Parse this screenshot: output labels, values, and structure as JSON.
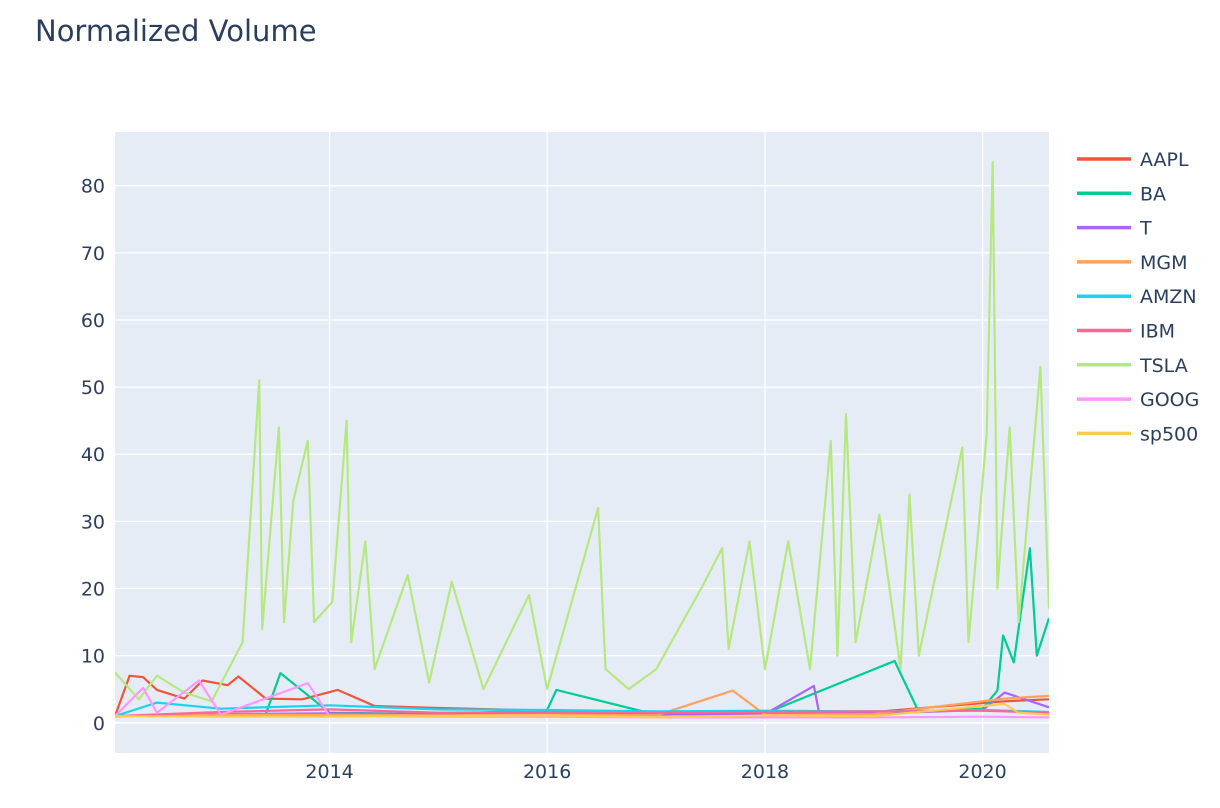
{
  "chart_data": {
    "type": "line",
    "title": "Normalized Volume",
    "xlabel": "",
    "ylabel": "",
    "x_range": [
      "2012-01-12",
      "2020-08-11"
    ],
    "ylim": [
      -4.5,
      88
    ],
    "x_ticks": [
      "2014",
      "2016",
      "2018",
      "2020"
    ],
    "y_ticks": [
      0,
      10,
      20,
      30,
      40,
      50,
      60,
      70,
      80
    ],
    "grid": true,
    "legend_position": "right",
    "plot_background": "#e5ecf6",
    "series": [
      {
        "name": "AAPL",
        "color": "#EF553B",
        "points": [
          [
            "2012-01-12",
            1.0
          ],
          [
            "2012-03-01",
            7.0
          ],
          [
            "2012-04-15",
            6.8
          ],
          [
            "2012-06-01",
            4.9
          ],
          [
            "2012-09-01",
            3.6
          ],
          [
            "2012-11-01",
            6.3
          ],
          [
            "2013-01-24",
            5.6
          ],
          [
            "2013-03-01",
            6.9
          ],
          [
            "2013-06-01",
            3.6
          ],
          [
            "2013-10-01",
            3.5
          ],
          [
            "2014-01-28",
            4.9
          ],
          [
            "2014-06-01",
            2.5
          ],
          [
            "2015-01-01",
            2.2
          ],
          [
            "2016-01-01",
            1.8
          ],
          [
            "2017-01-01",
            1.3
          ],
          [
            "2018-01-01",
            1.4
          ],
          [
            "2019-01-01",
            1.6
          ],
          [
            "2020-03-15",
            3.2
          ],
          [
            "2020-08-11",
            3.5
          ]
        ]
      },
      {
        "name": "BA",
        "color": "#00CC96",
        "points": [
          [
            "2012-01-12",
            1.0
          ],
          [
            "2013-06-01",
            1.3
          ],
          [
            "2013-07-20",
            7.4
          ],
          [
            "2014-01-01",
            1.5
          ],
          [
            "2015-01-01",
            1.3
          ],
          [
            "2016-01-01",
            1.9
          ],
          [
            "2016-02-01",
            4.9
          ],
          [
            "2017-01-01",
            1.2
          ],
          [
            "2018-01-01",
            1.4
          ],
          [
            "2019-03-12",
            9.2
          ],
          [
            "2019-06-01",
            1.6
          ],
          [
            "2020-01-01",
            2.1
          ],
          [
            "2020-02-20",
            4.8
          ],
          [
            "2020-03-10",
            13.0
          ],
          [
            "2020-04-15",
            9.0
          ],
          [
            "2020-06-08",
            26.0
          ],
          [
            "2020-07-01",
            10.0
          ],
          [
            "2020-08-11",
            15.6
          ]
        ]
      },
      {
        "name": "T",
        "color": "#AB63FA",
        "points": [
          [
            "2012-01-12",
            1.0
          ],
          [
            "2013-01-01",
            1.3
          ],
          [
            "2014-01-01",
            1.4
          ],
          [
            "2015-01-01",
            1.3
          ],
          [
            "2016-01-01",
            1.4
          ],
          [
            "2017-01-01",
            1.3
          ],
          [
            "2018-01-01",
            1.3
          ],
          [
            "2018-06-14",
            5.5
          ],
          [
            "2018-07-01",
            1.6
          ],
          [
            "2019-01-01",
            1.4
          ],
          [
            "2019-06-01",
            1.6
          ],
          [
            "2020-01-01",
            1.9
          ],
          [
            "2020-03-15",
            4.5
          ],
          [
            "2020-08-11",
            2.3
          ]
        ]
      },
      {
        "name": "MGM",
        "color": "#FFA15A",
        "points": [
          [
            "2012-01-12",
            1.0
          ],
          [
            "2013-01-01",
            1.2
          ],
          [
            "2014-01-01",
            1.2
          ],
          [
            "2015-01-01",
            1.1
          ],
          [
            "2016-01-01",
            1.2
          ],
          [
            "2017-01-01",
            1.1
          ],
          [
            "2017-09-15",
            4.8
          ],
          [
            "2018-01-01",
            1.2
          ],
          [
            "2019-01-01",
            1.3
          ],
          [
            "2020-03-15",
            3.6
          ],
          [
            "2020-08-11",
            4.0
          ]
        ]
      },
      {
        "name": "AMZN",
        "color": "#19D3F3",
        "points": [
          [
            "2012-01-12",
            1.0
          ],
          [
            "2012-06-01",
            3.0
          ],
          [
            "2013-01-01",
            2.1
          ],
          [
            "2014-01-01",
            2.6
          ],
          [
            "2015-01-01",
            2.0
          ],
          [
            "2016-01-01",
            1.9
          ],
          [
            "2017-01-01",
            1.7
          ],
          [
            "2018-01-01",
            1.8
          ],
          [
            "2019-01-01",
            1.7
          ],
          [
            "2020-01-01",
            1.9
          ],
          [
            "2020-08-11",
            1.6
          ]
        ]
      },
      {
        "name": "IBM",
        "color": "#FF6692",
        "points": [
          [
            "2012-01-12",
            1.0
          ],
          [
            "2013-01-01",
            1.6
          ],
          [
            "2014-01-01",
            2.0
          ],
          [
            "2015-01-01",
            1.5
          ],
          [
            "2016-01-01",
            1.6
          ],
          [
            "2017-01-01",
            1.5
          ],
          [
            "2018-01-01",
            1.6
          ],
          [
            "2019-01-01",
            1.7
          ],
          [
            "2020-01-01",
            1.8
          ],
          [
            "2020-08-11",
            1.5
          ]
        ]
      },
      {
        "name": "TSLA",
        "color": "#B6E880",
        "points": [
          [
            "2012-01-12",
            7.5
          ],
          [
            "2012-04-01",
            3.5
          ],
          [
            "2012-06-01",
            7.0
          ],
          [
            "2012-09-01",
            4.5
          ],
          [
            "2012-12-01",
            3.2
          ],
          [
            "2013-03-15",
            12.0
          ],
          [
            "2013-05-10",
            51.0
          ],
          [
            "2013-05-20",
            14.0
          ],
          [
            "2013-07-15",
            44.0
          ],
          [
            "2013-08-01",
            15.0
          ],
          [
            "2013-09-01",
            33.0
          ],
          [
            "2013-10-20",
            42.0
          ],
          [
            "2013-11-10",
            15.0
          ],
          [
            "2014-01-10",
            18.0
          ],
          [
            "2014-02-27",
            45.0
          ],
          [
            "2014-03-15",
            12.0
          ],
          [
            "2014-05-01",
            27.0
          ],
          [
            "2014-06-01",
            8.0
          ],
          [
            "2014-09-20",
            22.0
          ],
          [
            "2014-12-01",
            6.0
          ],
          [
            "2015-02-15",
            21.0
          ],
          [
            "2015-06-01",
            5.0
          ],
          [
            "2015-11-01",
            19.0
          ],
          [
            "2016-01-01",
            5.0
          ],
          [
            "2016-06-20",
            32.0
          ],
          [
            "2016-07-15",
            8.0
          ],
          [
            "2016-10-01",
            5.0
          ],
          [
            "2017-01-01",
            8.0
          ],
          [
            "2017-06-01",
            20.0
          ],
          [
            "2017-08-10",
            26.0
          ],
          [
            "2017-09-01",
            11.0
          ],
          [
            "2017-11-10",
            27.0
          ],
          [
            "2018-01-01",
            8.0
          ],
          [
            "2018-03-20",
            27.0
          ],
          [
            "2018-06-01",
            8.0
          ],
          [
            "2018-08-10",
            42.0
          ],
          [
            "2018-09-01",
            10.0
          ],
          [
            "2018-09-30",
            46.0
          ],
          [
            "2018-11-01",
            12.0
          ],
          [
            "2019-01-20",
            31.0
          ],
          [
            "2019-04-01",
            8.0
          ],
          [
            "2019-05-01",
            34.0
          ],
          [
            "2019-06-01",
            10.0
          ],
          [
            "2019-10-25",
            41.0
          ],
          [
            "2019-11-15",
            12.0
          ],
          [
            "2020-01-15",
            43.0
          ],
          [
            "2020-02-04",
            83.5
          ],
          [
            "2020-02-20",
            20.0
          ],
          [
            "2020-04-01",
            44.0
          ],
          [
            "2020-05-01",
            15.0
          ],
          [
            "2020-07-13",
            53.0
          ],
          [
            "2020-08-11",
            17.0
          ]
        ]
      },
      {
        "name": "GOOG",
        "color": "#FF97FF",
        "points": [
          [
            "2012-01-12",
            1.0
          ],
          [
            "2012-04-15",
            5.2
          ],
          [
            "2012-06-01",
            1.5
          ],
          [
            "2012-10-20",
            6.3
          ],
          [
            "2013-01-01",
            1.2
          ],
          [
            "2013-10-20",
            5.9
          ],
          [
            "2014-01-01",
            1.0
          ],
          [
            "2015-01-01",
            0.9
          ],
          [
            "2016-01-01",
            0.9
          ],
          [
            "2017-01-01",
            0.8
          ],
          [
            "2018-01-01",
            0.8
          ],
          [
            "2019-01-01",
            0.8
          ],
          [
            "2020-01-01",
            0.9
          ],
          [
            "2020-08-11",
            0.8
          ]
        ]
      },
      {
        "name": "sp500",
        "color": "#FECB52",
        "points": [
          [
            "2012-01-12",
            1.0
          ],
          [
            "2013-01-01",
            0.9
          ],
          [
            "2014-01-01",
            0.9
          ],
          [
            "2015-01-01",
            1.0
          ],
          [
            "2016-01-01",
            1.1
          ],
          [
            "2017-01-01",
            0.8
          ],
          [
            "2018-01-01",
            1.1
          ],
          [
            "2019-01-01",
            1.0
          ],
          [
            "2020-03-15",
            2.8
          ],
          [
            "2020-05-01",
            1.5
          ],
          [
            "2020-08-11",
            1.2
          ]
        ]
      }
    ]
  }
}
